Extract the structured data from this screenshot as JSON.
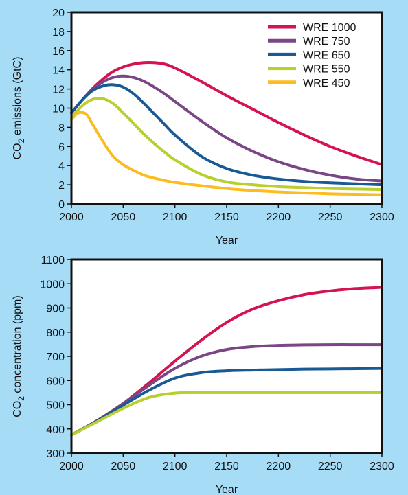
{
  "background": "#a7dcf7",
  "chart_data": [
    {
      "type": "line",
      "title": "",
      "xlabel": "Year",
      "ylabel_main": "CO",
      "ylabel_sub": "2",
      "ylabel_rest": " emissions (GtC)",
      "xlim": [
        2000,
        2300
      ],
      "ylim": [
        0,
        20
      ],
      "xticks": [
        2000,
        2050,
        2100,
        2150,
        2200,
        2250,
        2300
      ],
      "yticks": [
        0,
        2,
        4,
        6,
        8,
        10,
        12,
        14,
        16,
        18,
        20
      ],
      "grid": false,
      "legend_placement": "top-right",
      "series": [
        {
          "name": "WRE 1000",
          "color": "#d4134f",
          "x": [
            2000,
            2010,
            2020,
            2030,
            2040,
            2050,
            2060,
            2070,
            2080,
            2090,
            2100,
            2125,
            2150,
            2175,
            2200,
            2225,
            2250,
            2275,
            2300
          ],
          "y": [
            9.5,
            10.8,
            12.0,
            13.0,
            13.8,
            14.3,
            14.6,
            14.75,
            14.75,
            14.6,
            14.2,
            12.8,
            11.3,
            9.9,
            8.5,
            7.2,
            6.0,
            5.0,
            4.1
          ]
        },
        {
          "name": "WRE 750",
          "color": "#7b4685",
          "x": [
            2000,
            2010,
            2020,
            2030,
            2040,
            2050,
            2060,
            2070,
            2080,
            2090,
            2100,
            2125,
            2150,
            2175,
            2200,
            2225,
            2250,
            2275,
            2300
          ],
          "y": [
            9.5,
            10.8,
            11.9,
            12.7,
            13.2,
            13.35,
            13.2,
            12.8,
            12.2,
            11.5,
            10.7,
            8.7,
            6.9,
            5.5,
            4.4,
            3.6,
            3.0,
            2.6,
            2.4
          ]
        },
        {
          "name": "WRE 650",
          "color": "#1a5a94",
          "x": [
            2000,
            2010,
            2020,
            2030,
            2040,
            2050,
            2060,
            2070,
            2080,
            2090,
            2100,
            2125,
            2150,
            2175,
            2200,
            2225,
            2250,
            2275,
            2300
          ],
          "y": [
            9.5,
            10.8,
            11.8,
            12.3,
            12.45,
            12.2,
            11.5,
            10.5,
            9.4,
            8.3,
            7.2,
            5.0,
            3.7,
            3.0,
            2.6,
            2.35,
            2.2,
            2.1,
            2.0
          ]
        },
        {
          "name": "WRE 550",
          "color": "#b8cf2c",
          "x": [
            2000,
            2010,
            2020,
            2030,
            2040,
            2050,
            2060,
            2070,
            2080,
            2090,
            2100,
            2125,
            2150,
            2175,
            2200,
            2225,
            2250,
            2275,
            2300
          ],
          "y": [
            9.0,
            10.2,
            10.9,
            11.0,
            10.5,
            9.5,
            8.4,
            7.3,
            6.3,
            5.4,
            4.6,
            3.1,
            2.3,
            2.0,
            1.8,
            1.7,
            1.6,
            1.55,
            1.5
          ]
        },
        {
          "name": "WRE 450",
          "color": "#fcbc20",
          "x": [
            2000,
            2005,
            2010,
            2015,
            2020,
            2030,
            2040,
            2050,
            2060,
            2070,
            2080,
            2090,
            2100,
            2125,
            2150,
            2175,
            2200,
            2225,
            2250,
            2275,
            2300
          ],
          "y": [
            8.8,
            9.4,
            9.55,
            9.3,
            8.4,
            6.6,
            5.0,
            4.1,
            3.5,
            3.0,
            2.7,
            2.45,
            2.25,
            1.9,
            1.6,
            1.4,
            1.25,
            1.15,
            1.05,
            1.0,
            0.95
          ]
        }
      ]
    },
    {
      "type": "line",
      "title": "",
      "xlabel": "Year",
      "ylabel_main": "CO",
      "ylabel_sub": "2",
      "ylabel_rest": " concentration (ppm)",
      "xlim": [
        2000,
        2300
      ],
      "ylim": [
        300,
        1100
      ],
      "xticks": [
        2000,
        2050,
        2100,
        2150,
        2200,
        2250,
        2300
      ],
      "yticks": [
        300,
        400,
        500,
        600,
        700,
        800,
        900,
        1000,
        1100
      ],
      "grid": false,
      "series": [
        {
          "color": "#d4134f",
          "x": [
            2000,
            2025,
            2050,
            2075,
            2100,
            2125,
            2150,
            2175,
            2200,
            2225,
            2250,
            2275,
            2300
          ],
          "y": [
            375,
            435,
            505,
            590,
            680,
            765,
            840,
            895,
            930,
            955,
            970,
            980,
            985
          ]
        },
        {
          "color": "#7b4685",
          "x": [
            2000,
            2025,
            2050,
            2075,
            2100,
            2125,
            2150,
            2175,
            2200,
            2225,
            2250,
            2275,
            2300
          ],
          "y": [
            375,
            435,
            505,
            580,
            650,
            700,
            728,
            740,
            745,
            747,
            748,
            748,
            748
          ]
        },
        {
          "color": "#1a5a94",
          "x": [
            2000,
            2025,
            2050,
            2075,
            2100,
            2125,
            2150,
            2175,
            2200,
            2225,
            2250,
            2275,
            2300
          ],
          "y": [
            375,
            433,
            498,
            560,
            610,
            632,
            640,
            643,
            645,
            647,
            648,
            649,
            650
          ]
        },
        {
          "color": "#b8cf2c",
          "x": [
            2000,
            2025,
            2050,
            2075,
            2100,
            2125,
            2150,
            2175,
            2200,
            2225,
            2250,
            2275,
            2300
          ],
          "y": [
            375,
            430,
            485,
            530,
            548,
            550,
            550,
            550,
            550,
            550,
            550,
            550,
            550
          ]
        }
      ]
    }
  ]
}
